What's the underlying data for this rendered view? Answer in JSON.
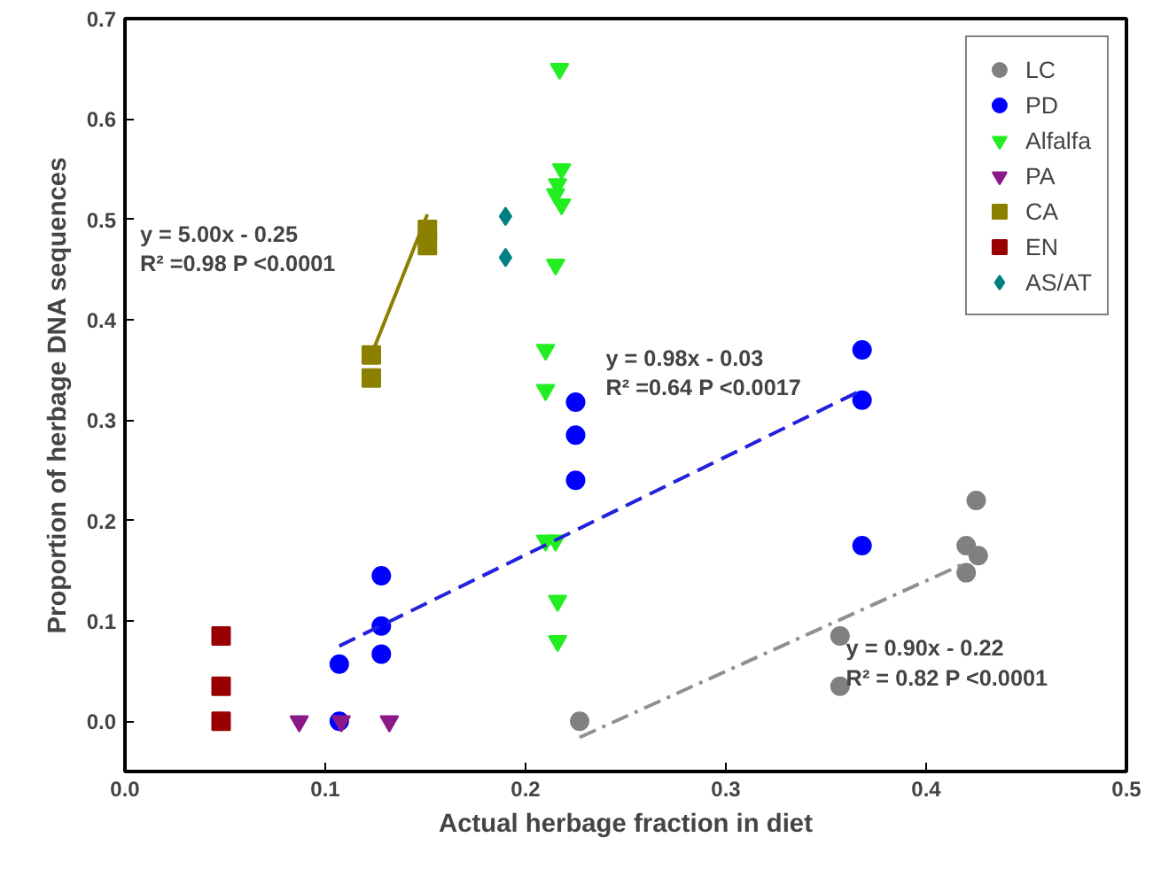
{
  "chart_data": {
    "type": "scatter",
    "xlabel": "Actual herbage fraction in diet",
    "ylabel": "Proportion of herbage DNA sequences",
    "xlim": [
      0,
      0.5
    ],
    "ylim": [
      -0.05,
      0.7
    ],
    "xticks": [
      {
        "value": 0,
        "label": "0.0"
      },
      0.1,
      0.2,
      0.3,
      0.4,
      0.5
    ],
    "yticks": [
      {
        "value": 0,
        "label": "0.0"
      },
      0.1,
      0.2,
      0.3,
      0.4,
      0.5,
      0.6,
      0.7
    ],
    "grid": false,
    "legend": "top right",
    "series": [
      {
        "name": "LC",
        "color": "#808080",
        "marker": "circle",
        "x": [
          0.227,
          0.357,
          0.357,
          0.42,
          0.425,
          0.42,
          0.426
        ],
        "values": [
          0.0,
          0.085,
          0.035,
          0.175,
          0.22,
          0.148,
          0.165
        ]
      },
      {
        "name": "PD",
        "color": "#0000ff",
        "marker": "circle",
        "x": [
          0.107,
          0.107,
          0.128,
          0.128,
          0.128,
          0.225,
          0.225,
          0.225,
          0.368,
          0.368,
          0.368
        ],
        "values": [
          0.057,
          0.0,
          0.145,
          0.095,
          0.067,
          0.318,
          0.285,
          0.24,
          0.37,
          0.32,
          0.175
        ]
      },
      {
        "name": "Alfalfa",
        "color": "#22ee22",
        "marker": "triangle",
        "x": [
          0.217,
          0.218,
          0.216,
          0.215,
          0.218,
          0.215,
          0.21,
          0.21,
          0.21,
          0.215,
          0.216,
          0.216
        ],
        "values": [
          0.65,
          0.55,
          0.535,
          0.525,
          0.515,
          0.455,
          0.37,
          0.33,
          0.18,
          0.18,
          0.12,
          0.08
        ]
      },
      {
        "name": "PA",
        "color": "#8b1a89",
        "marker": "triangle",
        "x": [
          0.087,
          0.108,
          0.132
        ],
        "values": [
          0.0,
          0.0,
          0.0
        ]
      },
      {
        "name": "CA",
        "color": "#8b8000",
        "marker": "square",
        "x": [
          0.123,
          0.123,
          0.151,
          0.151
        ],
        "values": [
          0.365,
          0.342,
          0.49,
          0.474
        ]
      },
      {
        "name": "EN",
        "color": "#990000",
        "marker": "square",
        "x": [
          0.048,
          0.048,
          0.048
        ],
        "values": [
          0.085,
          0.035,
          0.0
        ]
      },
      {
        "name": "AS/AT",
        "color": "#008080",
        "marker": "diamond",
        "x": [
          0.19,
          0.19
        ],
        "values": [
          0.503,
          0.462
        ]
      },
      {
        "type": "line",
        "color": "#8b8000",
        "line_style": "solid",
        "x": [
          0.123,
          0.151
        ],
        "values": [
          0.365,
          0.505
        ]
      },
      {
        "type": "line",
        "color": "#2222dd",
        "line_style": "dashed",
        "x": [
          0.107,
          0.368
        ],
        "values": [
          0.075,
          0.33
        ]
      },
      {
        "type": "line",
        "color": "#909090",
        "line_style": "dashdot",
        "x": [
          0.227,
          0.42
        ],
        "values": [
          -0.016,
          0.158
        ]
      }
    ],
    "annotations": [
      "y = 5.00x - 0.25\nR² =0.98 P <0.0001",
      "y = 0.98x - 0.03\nR² =0.64 P <0.0017",
      "y = 0.90x - 0.22\nR² = 0.82 P <0.0001"
    ]
  }
}
